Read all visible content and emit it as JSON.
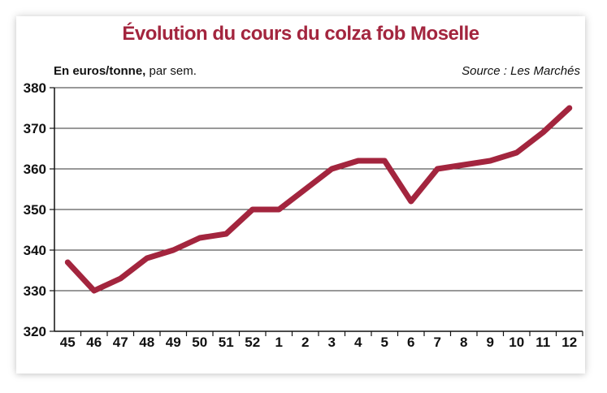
{
  "chart_data": {
    "type": "line",
    "title": "Évolution du cours du colza fob Moselle",
    "unit_label": "En euros/tonne,",
    "unit_suffix": " par sem.",
    "source": "Source : Les Marchés",
    "categories": [
      "45",
      "46",
      "47",
      "48",
      "49",
      "50",
      "51",
      "52",
      "1",
      "2",
      "3",
      "4",
      "5",
      "6",
      "7",
      "8",
      "9",
      "10",
      "11",
      "12"
    ],
    "values": [
      337,
      330,
      333,
      338,
      340,
      343,
      344,
      350,
      350,
      355,
      360,
      362,
      362,
      352,
      360,
      361,
      362,
      364,
      369,
      375
    ],
    "ylim": [
      320,
      380
    ],
    "yticks": [
      320,
      330,
      340,
      350,
      360,
      370,
      380
    ],
    "grid": true,
    "line_color": "#a3253e"
  }
}
